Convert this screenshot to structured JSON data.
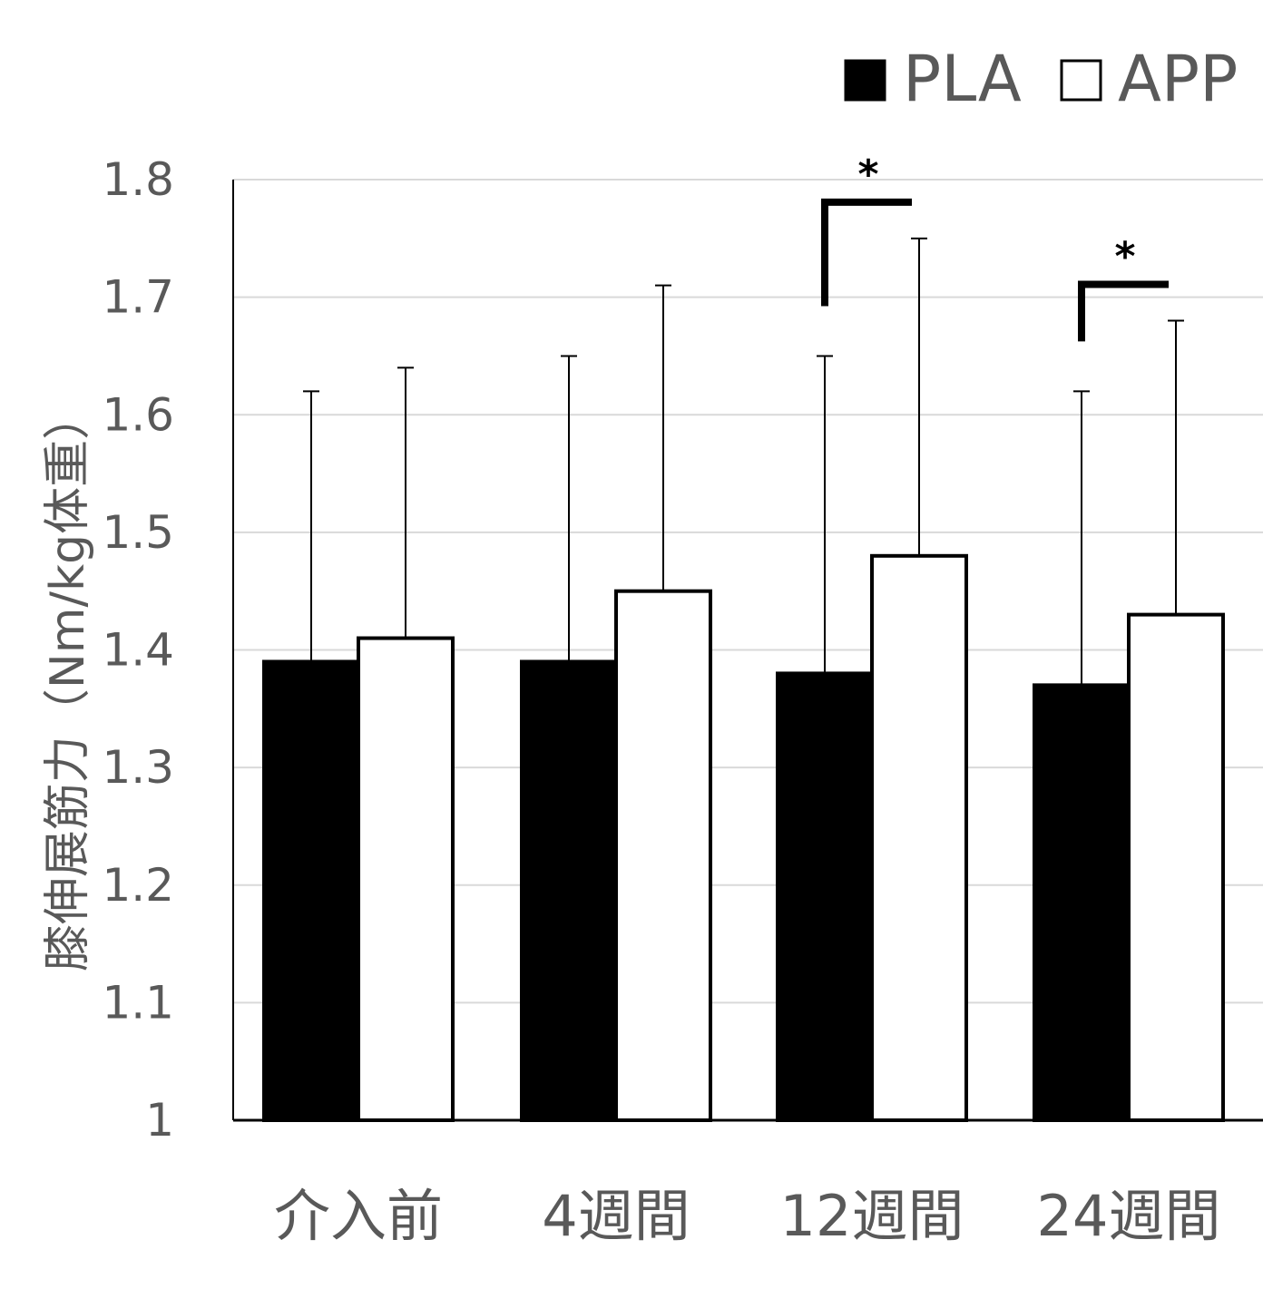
{
  "chart_data": {
    "type": "bar",
    "categories": [
      "介入前",
      "4週間",
      "12週間",
      "24週間"
    ],
    "series": [
      {
        "name": "PLA",
        "values": [
          1.39,
          1.39,
          1.38,
          1.37
        ],
        "errors": [
          0.23,
          0.26,
          0.27,
          0.25
        ],
        "color": "#000000"
      },
      {
        "name": "APP",
        "values": [
          1.41,
          1.45,
          1.48,
          1.43
        ],
        "errors": [
          0.23,
          0.26,
          0.27,
          0.25
        ],
        "color": "#ffffff"
      }
    ],
    "ylabel": "膝伸展筋力（Nm/kg体重）",
    "ylim": [
      1,
      1.8
    ],
    "yticks": [
      "1",
      "1.1",
      "1.2",
      "1.3",
      "1.4",
      "1.5",
      "1.6",
      "1.7",
      "1.8"
    ],
    "grid": true,
    "legend": "top-right",
    "significance": [
      {
        "category_index": 2,
        "label": "*"
      },
      {
        "category_index": 3,
        "label": "*"
      }
    ]
  }
}
